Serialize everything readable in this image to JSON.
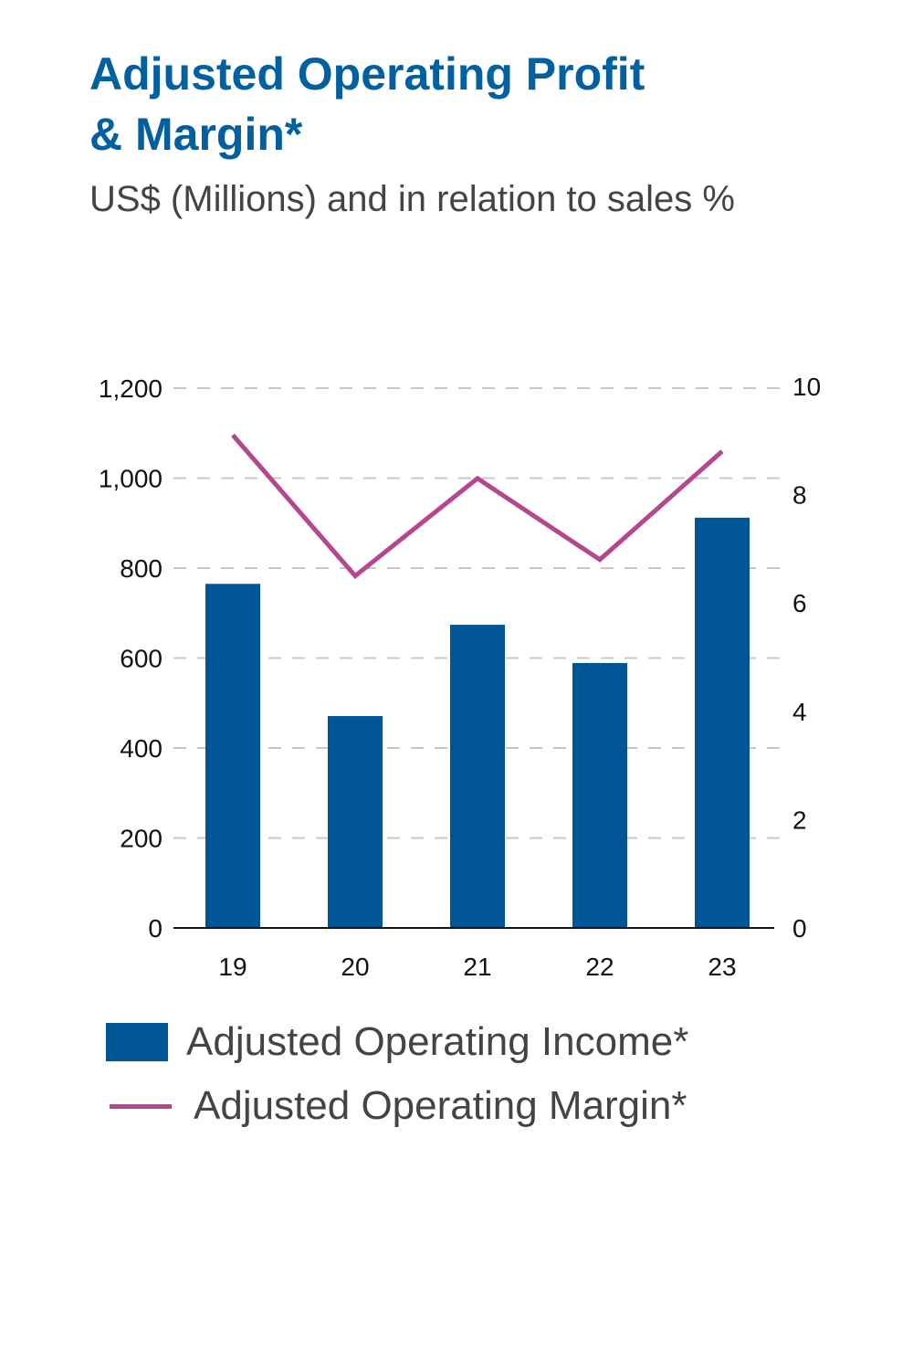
{
  "chart_data": {
    "type": "bar",
    "title": "Adjusted Operating Profit & Margin*",
    "title_lines": [
      "Adjusted Operating Profit",
      "& Margin*"
    ],
    "subtitle": "US$ (Millions) and in relation to sales %",
    "categories": [
      "19",
      "20",
      "21",
      "22",
      "23"
    ],
    "series": [
      {
        "name": "Adjusted Operating Income*",
        "type": "bar",
        "axis": "left",
        "color": "#005596",
        "values": [
          765,
          471,
          674,
          589,
          912
        ]
      },
      {
        "name": "Adjusted Operating Margin*",
        "type": "line",
        "axis": "right",
        "color": "#b5468f",
        "values": [
          9.1,
          6.5,
          8.3,
          6.8,
          8.8
        ]
      }
    ],
    "left_axis": {
      "ylim": [
        0,
        1200
      ],
      "ticks": [
        "0",
        "200",
        "400",
        "600",
        "800",
        "1,000",
        "1,200"
      ],
      "tick_values": [
        0,
        200,
        400,
        600,
        800,
        1000,
        1200
      ]
    },
    "right_axis": {
      "ylim": [
        0,
        10
      ],
      "ticks": [
        "0",
        "2",
        "4",
        "6",
        "8",
        "10"
      ],
      "tick_values": [
        0,
        2,
        4,
        6,
        8,
        10
      ]
    },
    "grid": true,
    "legend_placement": "bottom"
  }
}
